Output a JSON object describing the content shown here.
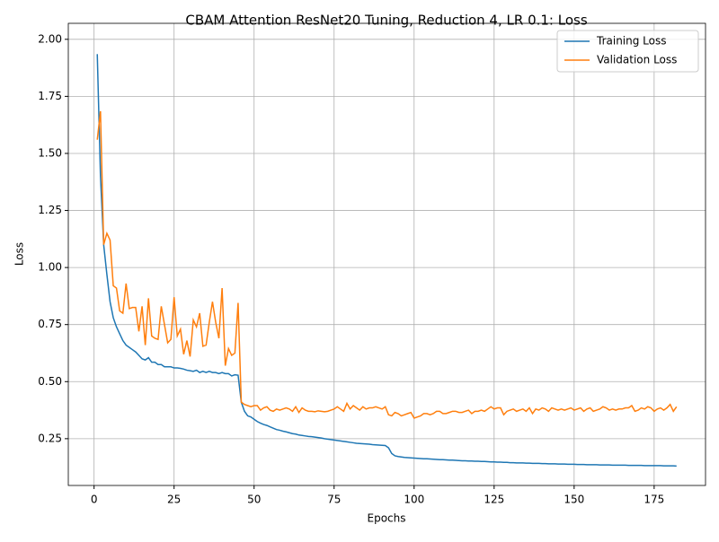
{
  "chart_data": {
    "type": "line",
    "title": "CBAM Attention ResNet20 Tuning, Reduction 4, LR 0.1: Loss",
    "x_label": "Epochs",
    "y_label": "Loss",
    "x": [
      1,
      2,
      3,
      4,
      5,
      6,
      7,
      8,
      9,
      10,
      11,
      12,
      13,
      14,
      15,
      16,
      17,
      18,
      19,
      20,
      21,
      22,
      23,
      24,
      25,
      26,
      27,
      28,
      29,
      30,
      31,
      32,
      33,
      34,
      35,
      36,
      37,
      38,
      39,
      40,
      41,
      42,
      43,
      44,
      45,
      46,
      47,
      48,
      49,
      50,
      51,
      52,
      53,
      54,
      55,
      56,
      57,
      58,
      59,
      60,
      61,
      62,
      63,
      64,
      65,
      66,
      67,
      68,
      69,
      70,
      71,
      72,
      73,
      74,
      75,
      76,
      77,
      78,
      79,
      80,
      81,
      82,
      83,
      84,
      85,
      86,
      87,
      88,
      89,
      90,
      91,
      92,
      93,
      94,
      95,
      96,
      97,
      98,
      99,
      100,
      101,
      102,
      103,
      104,
      105,
      106,
      107,
      108,
      109,
      110,
      111,
      112,
      113,
      114,
      115,
      116,
      117,
      118,
      119,
      120,
      121,
      122,
      123,
      124,
      125,
      126,
      127,
      128,
      129,
      130,
      131,
      132,
      133,
      134,
      135,
      136,
      137,
      138,
      139,
      140,
      141,
      142,
      143,
      144,
      145,
      146,
      147,
      148,
      149,
      150,
      151,
      152,
      153,
      154,
      155,
      156,
      157,
      158,
      159,
      160,
      161,
      162,
      163,
      164,
      165,
      166,
      167,
      168,
      169,
      170,
      171,
      172,
      173,
      174,
      175,
      176,
      177,
      178,
      179,
      180,
      181,
      182
    ],
    "series": [
      {
        "name": "Training Loss",
        "color": "#1f77b4",
        "values": [
          1.935,
          1.4,
          1.1,
          0.97,
          0.85,
          0.78,
          0.74,
          0.71,
          0.68,
          0.66,
          0.65,
          0.64,
          0.63,
          0.615,
          0.6,
          0.595,
          0.605,
          0.585,
          0.585,
          0.575,
          0.575,
          0.565,
          0.565,
          0.565,
          0.56,
          0.56,
          0.558,
          0.555,
          0.55,
          0.548,
          0.545,
          0.55,
          0.54,
          0.545,
          0.54,
          0.545,
          0.54,
          0.54,
          0.535,
          0.54,
          0.535,
          0.535,
          0.525,
          0.53,
          0.528,
          0.41,
          0.37,
          0.35,
          0.345,
          0.335,
          0.325,
          0.318,
          0.312,
          0.308,
          0.302,
          0.296,
          0.29,
          0.287,
          0.283,
          0.28,
          0.276,
          0.272,
          0.27,
          0.266,
          0.264,
          0.262,
          0.26,
          0.259,
          0.257,
          0.255,
          0.253,
          0.25,
          0.248,
          0.246,
          0.244,
          0.242,
          0.24,
          0.238,
          0.236,
          0.234,
          0.232,
          0.23,
          0.229,
          0.228,
          0.227,
          0.226,
          0.224,
          0.223,
          0.222,
          0.221,
          0.22,
          0.21,
          0.185,
          0.175,
          0.172,
          0.17,
          0.168,
          0.167,
          0.166,
          0.165,
          0.164,
          0.163,
          0.162,
          0.162,
          0.161,
          0.16,
          0.159,
          0.158,
          0.158,
          0.157,
          0.156,
          0.156,
          0.155,
          0.154,
          0.153,
          0.153,
          0.152,
          0.152,
          0.151,
          0.151,
          0.15,
          0.15,
          0.149,
          0.148,
          0.148,
          0.147,
          0.147,
          0.146,
          0.146,
          0.145,
          0.145,
          0.144,
          0.144,
          0.144,
          0.143,
          0.143,
          0.142,
          0.142,
          0.142,
          0.141,
          0.141,
          0.14,
          0.14,
          0.14,
          0.139,
          0.139,
          0.139,
          0.138,
          0.138,
          0.138,
          0.137,
          0.137,
          0.137,
          0.136,
          0.136,
          0.136,
          0.136,
          0.135,
          0.135,
          0.135,
          0.135,
          0.134,
          0.134,
          0.134,
          0.134,
          0.134,
          0.133,
          0.133,
          0.133,
          0.133,
          0.133,
          0.132,
          0.132,
          0.132,
          0.132,
          0.132,
          0.132,
          0.131,
          0.131,
          0.131,
          0.131,
          0.13
        ]
      },
      {
        "name": "Validation Loss",
        "color": "#ff7f0e",
        "values": [
          1.56,
          1.685,
          1.1,
          1.15,
          1.12,
          0.92,
          0.91,
          0.81,
          0.8,
          0.93,
          0.82,
          0.825,
          0.825,
          0.72,
          0.83,
          0.66,
          0.865,
          0.7,
          0.69,
          0.685,
          0.83,
          0.75,
          0.67,
          0.685,
          0.87,
          0.7,
          0.73,
          0.62,
          0.68,
          0.61,
          0.77,
          0.74,
          0.8,
          0.655,
          0.66,
          0.76,
          0.85,
          0.76,
          0.69,
          0.91,
          0.57,
          0.645,
          0.615,
          0.625,
          0.845,
          0.41,
          0.4,
          0.395,
          0.39,
          0.395,
          0.395,
          0.375,
          0.385,
          0.39,
          0.375,
          0.37,
          0.38,
          0.375,
          0.38,
          0.385,
          0.38,
          0.37,
          0.39,
          0.365,
          0.385,
          0.375,
          0.37,
          0.37,
          0.368,
          0.372,
          0.37,
          0.368,
          0.37,
          0.375,
          0.38,
          0.39,
          0.38,
          0.37,
          0.405,
          0.38,
          0.395,
          0.385,
          0.375,
          0.39,
          0.38,
          0.385,
          0.385,
          0.39,
          0.385,
          0.38,
          0.39,
          0.355,
          0.35,
          0.365,
          0.36,
          0.35,
          0.355,
          0.36,
          0.365,
          0.34,
          0.345,
          0.35,
          0.36,
          0.36,
          0.355,
          0.36,
          0.37,
          0.37,
          0.36,
          0.36,
          0.365,
          0.37,
          0.37,
          0.365,
          0.365,
          0.37,
          0.375,
          0.36,
          0.37,
          0.37,
          0.375,
          0.37,
          0.38,
          0.39,
          0.38,
          0.385,
          0.385,
          0.355,
          0.37,
          0.375,
          0.38,
          0.37,
          0.375,
          0.38,
          0.37,
          0.385,
          0.36,
          0.38,
          0.375,
          0.385,
          0.38,
          0.37,
          0.385,
          0.38,
          0.375,
          0.38,
          0.375,
          0.38,
          0.385,
          0.375,
          0.38,
          0.385,
          0.37,
          0.38,
          0.385,
          0.37,
          0.375,
          0.38,
          0.39,
          0.385,
          0.375,
          0.38,
          0.375,
          0.38,
          0.38,
          0.385,
          0.385,
          0.395,
          0.37,
          0.375,
          0.385,
          0.38,
          0.39,
          0.385,
          0.37,
          0.38,
          0.385,
          0.375,
          0.385,
          0.4,
          0.37,
          0.39
        ]
      }
    ],
    "xlim": [
      -8.05,
      191.05
    ],
    "xticks": [
      0,
      25,
      50,
      75,
      100,
      125,
      150,
      175
    ],
    "ylim": [
      0.045,
      2.07
    ],
    "yticks": [
      0.25,
      {
        "value": 0.5,
        "label": "0.50"
      },
      0.75,
      {
        "value": 1.0,
        "label": "1.00"
      },
      1.25,
      {
        "value": 1.5,
        "label": "1.50"
      },
      1.75,
      {
        "value": 2.0,
        "label": "2.00"
      }
    ],
    "grid": true,
    "legend": "upper right"
  }
}
